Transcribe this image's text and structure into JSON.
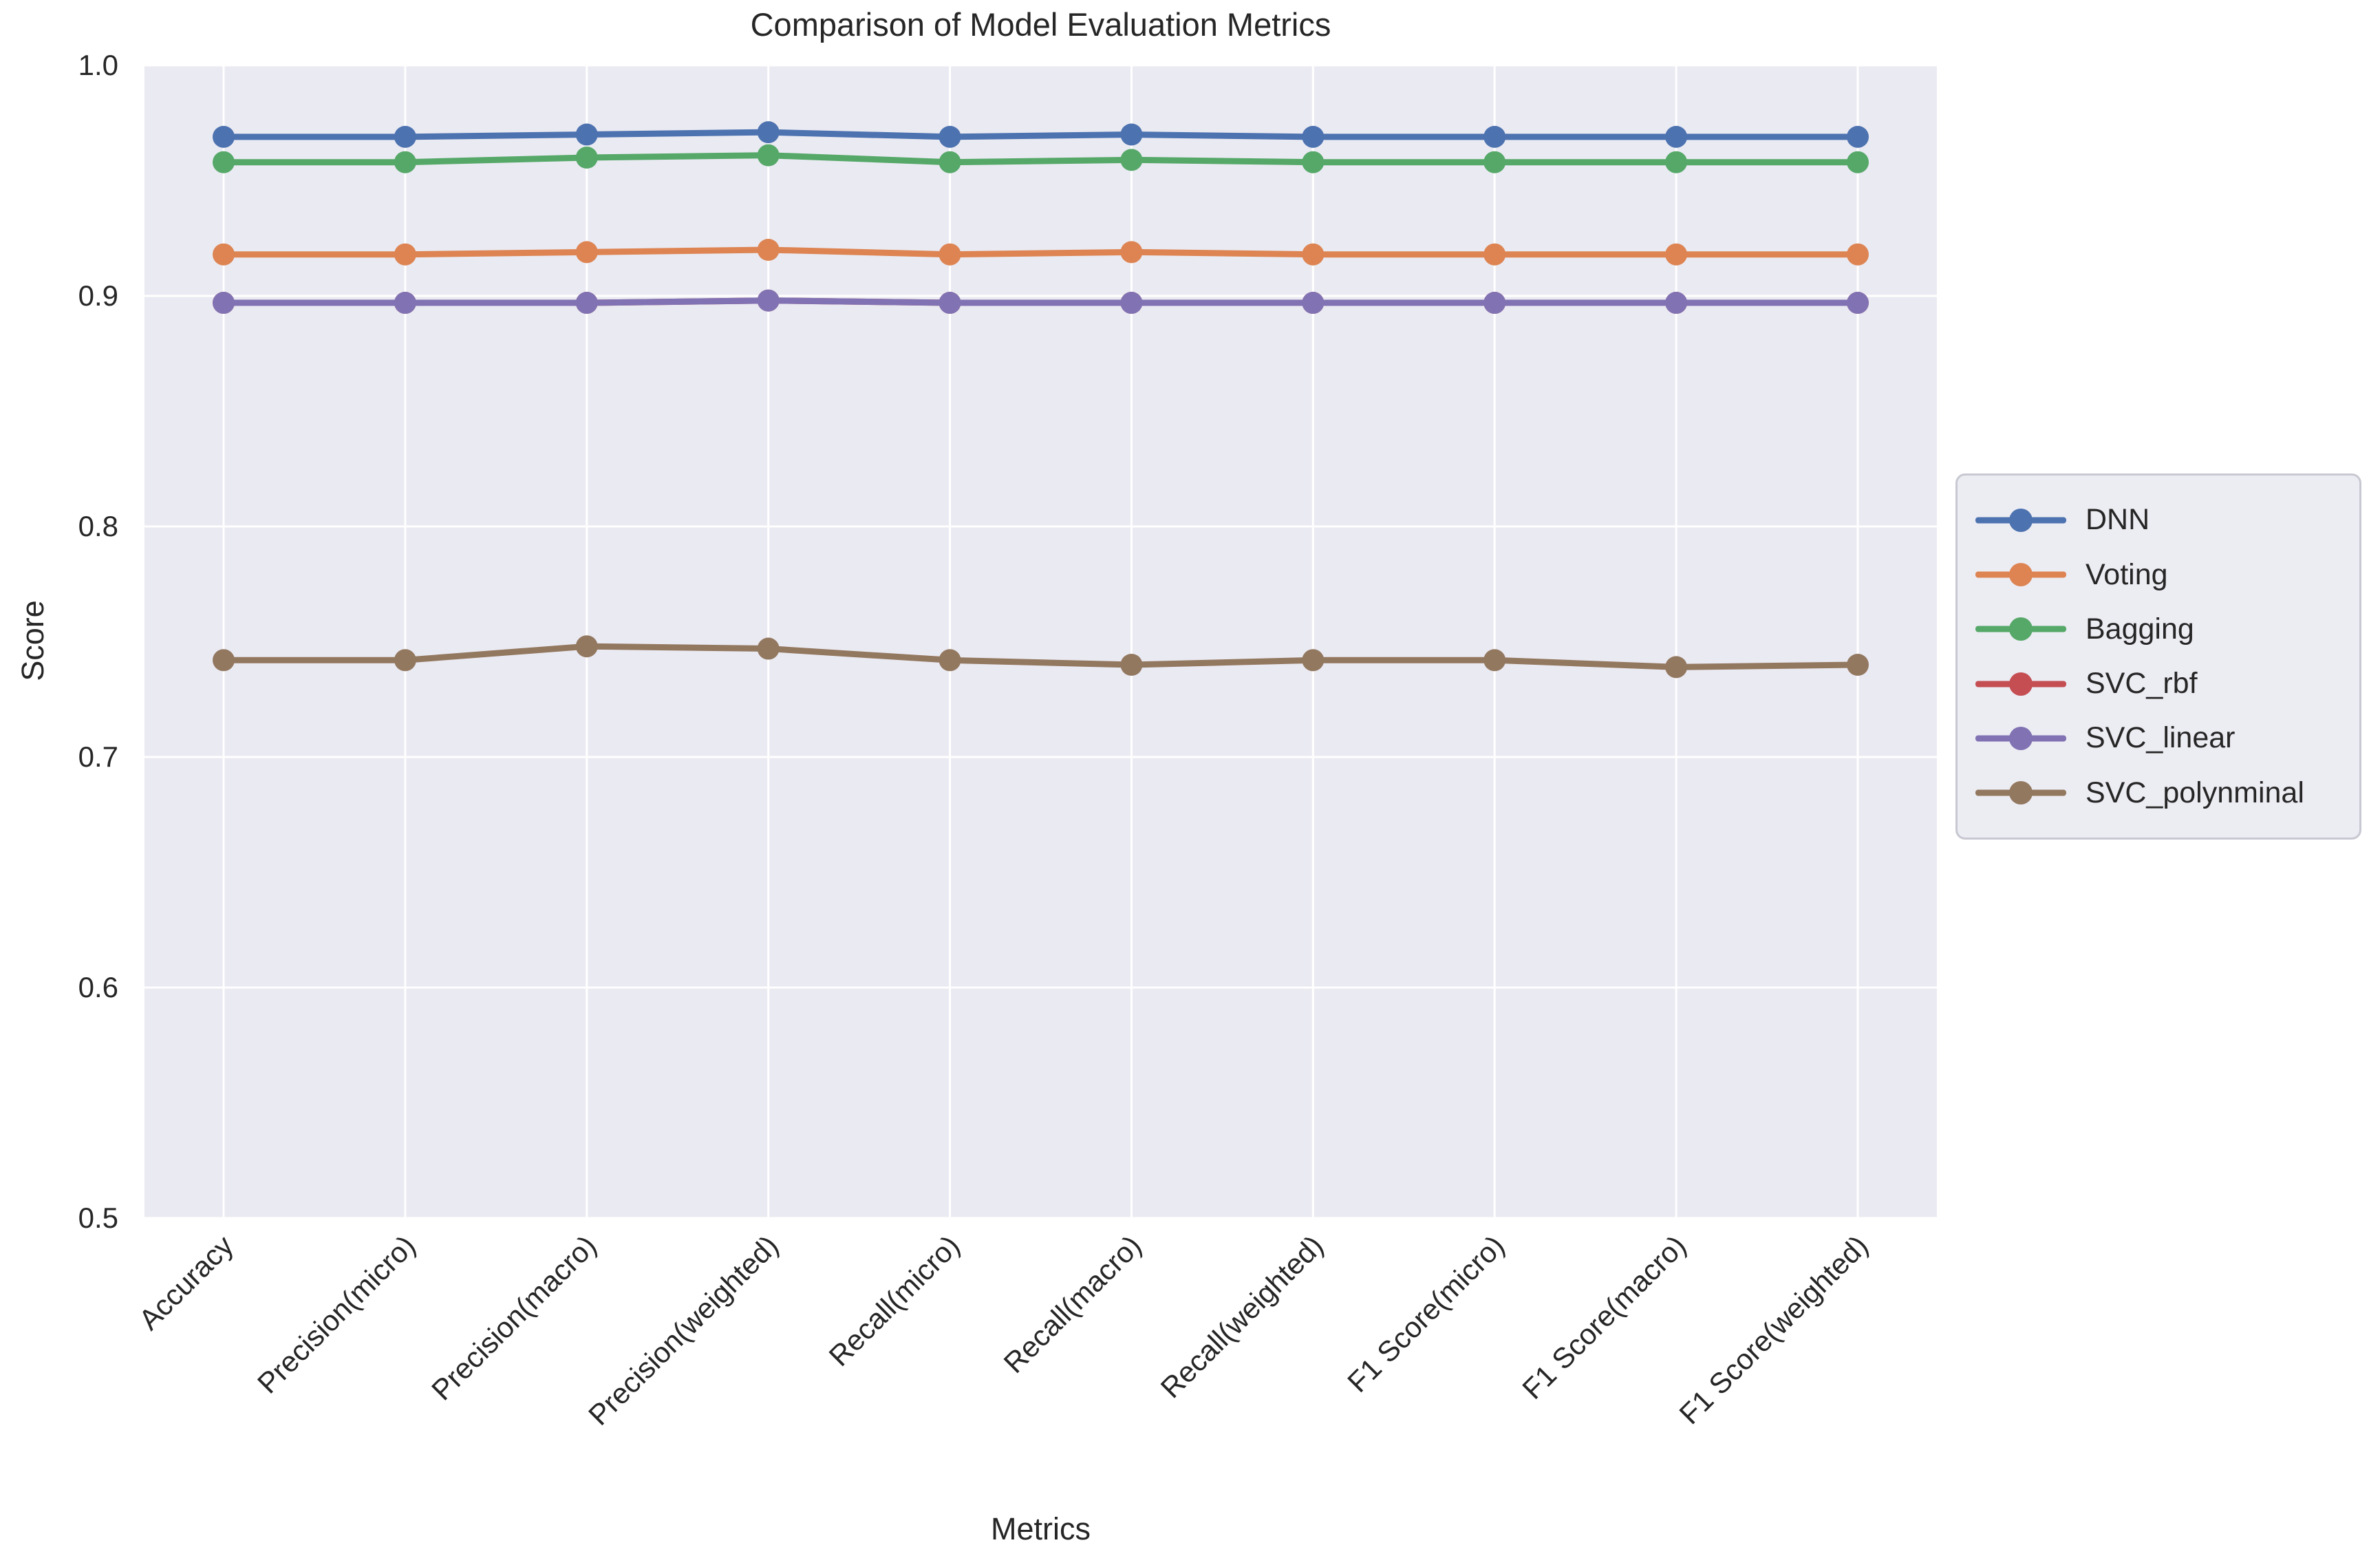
{
  "chart_data": {
    "type": "line",
    "title": "Comparison of Model Evaluation Metrics",
    "xlabel": "Metrics",
    "ylabel": "Score",
    "ylim": [
      0.5,
      1.0
    ],
    "yticks": [
      0.5,
      0.6,
      0.7,
      0.8,
      0.9,
      1.0
    ],
    "grid": true,
    "grid_color": "#ffffff",
    "plot_background": "#eaeaf2",
    "legend_position": "right-outside",
    "categories": [
      "Accuracy",
      "Precision(micro)",
      "Precision(macro)",
      "Precision(weighted)",
      "Recall(micro)",
      "Recall(macro)",
      "Recall(weighted)",
      "F1 Score(micro)",
      "F1 Score(macro)",
      "F1 Score(weighted)"
    ],
    "series": [
      {
        "name": "DNN",
        "color": "#4C72B0",
        "values": [
          0.969,
          0.969,
          0.97,
          0.971,
          0.969,
          0.97,
          0.969,
          0.969,
          0.969,
          0.969
        ]
      },
      {
        "name": "Voting",
        "color": "#DD8452",
        "values": [
          0.918,
          0.918,
          0.919,
          0.92,
          0.918,
          0.919,
          0.918,
          0.918,
          0.918,
          0.918
        ]
      },
      {
        "name": "Bagging",
        "color": "#55A868",
        "values": [
          0.958,
          0.958,
          0.96,
          0.961,
          0.958,
          0.959,
          0.958,
          0.958,
          0.958,
          0.958
        ]
      },
      {
        "name": "SVC_rbf",
        "color": "#C44E52",
        "values": [
          0.897,
          0.897,
          0.897,
          0.898,
          0.897,
          0.897,
          0.897,
          0.897,
          0.897,
          0.897
        ]
      },
      {
        "name": "SVC_linear",
        "color": "#8172B3",
        "values": [
          0.897,
          0.897,
          0.897,
          0.898,
          0.897,
          0.897,
          0.897,
          0.897,
          0.897,
          0.897
        ]
      },
      {
        "name": "SVC_polynminal",
        "color": "#937860",
        "values": [
          0.742,
          0.742,
          0.748,
          0.747,
          0.742,
          0.74,
          0.742,
          0.742,
          0.739,
          0.74
        ]
      }
    ]
  }
}
